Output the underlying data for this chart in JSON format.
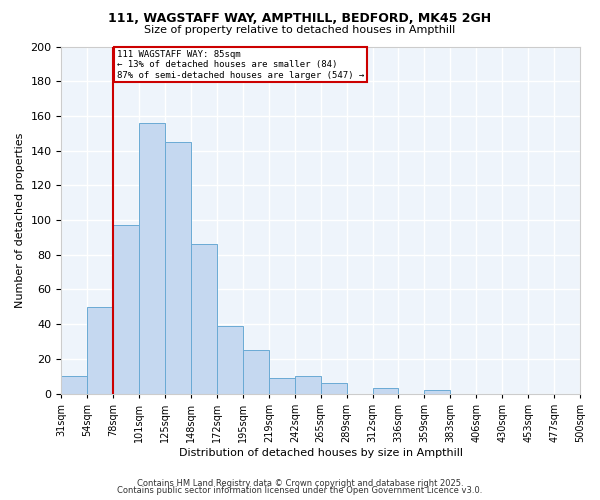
{
  "title": "111, WAGSTAFF WAY, AMPTHILL, BEDFORD, MK45 2GH",
  "subtitle": "Size of property relative to detached houses in Ampthill",
  "xlabel": "Distribution of detached houses by size in Ampthill",
  "ylabel": "Number of detached properties",
  "bar_values": [
    10,
    50,
    97,
    156,
    145,
    86,
    39,
    25,
    9,
    10,
    6,
    0,
    3,
    0,
    2
  ],
  "bin_edges": [
    0,
    1,
    2,
    3,
    4,
    5,
    6,
    7,
    8,
    9,
    10,
    11,
    12,
    13,
    14,
    15
  ],
  "tick_labels": [
    "31sqm",
    "54sqm",
    "78sqm",
    "101sqm",
    "125sqm",
    "148sqm",
    "172sqm",
    "195sqm",
    "219sqm",
    "242sqm",
    "265sqm",
    "289sqm",
    "312sqm",
    "336sqm",
    "359sqm",
    "383sqm",
    "406sqm",
    "430sqm",
    "453sqm",
    "477sqm",
    "500sqm"
  ],
  "bar_color": "#c5d8f0",
  "bar_edge_color": "#6aaad4",
  "vline_color": "#cc0000",
  "vline_x": 2.0,
  "annotation_text": "111 WAGSTAFF WAY: 85sqm\n← 13% of detached houses are smaller (84)\n87% of semi-detached houses are larger (547) →",
  "annotation_box_facecolor": "#ffffff",
  "annotation_box_edgecolor": "#cc0000",
  "ylim": [
    0,
    200
  ],
  "yticks": [
    0,
    20,
    40,
    60,
    80,
    100,
    120,
    140,
    160,
    180,
    200
  ],
  "plot_bg": "#eef4fb",
  "fig_bg": "#ffffff",
  "grid_color": "#ffffff",
  "grid_lw": 1.0,
  "footer_line1": "Contains HM Land Registry data © Crown copyright and database right 2025.",
  "footer_line2": "Contains public sector information licensed under the Open Government Licence v3.0.",
  "title_fontsize": 9,
  "subtitle_fontsize": 8,
  "axis_label_fontsize": 8,
  "tick_fontsize": 7,
  "footer_fontsize": 6
}
